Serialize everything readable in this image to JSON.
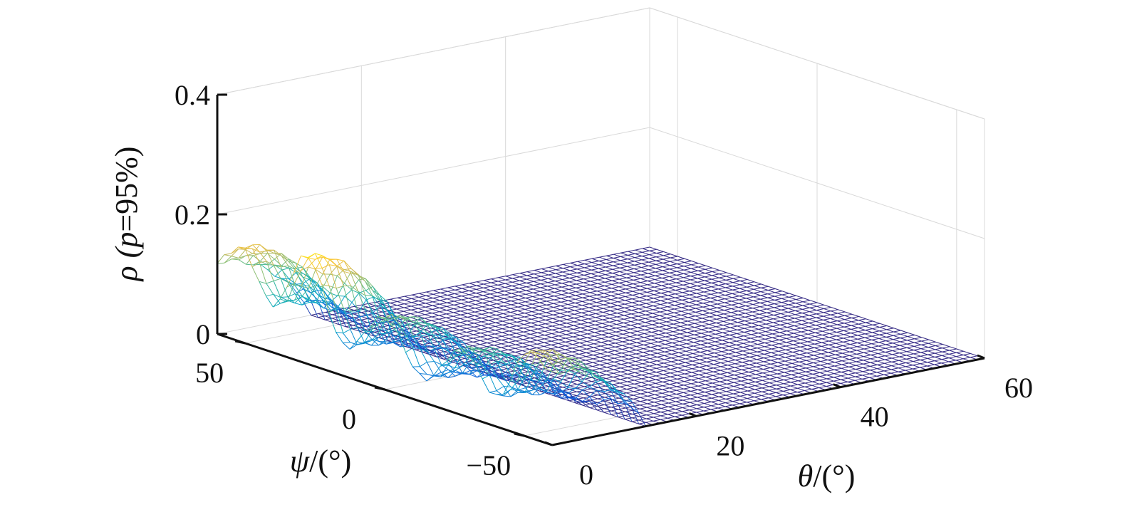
{
  "chart_data": {
    "type": "surface",
    "xlabel_parts": [
      "θ",
      "/(°)"
    ],
    "ylabel_parts": [
      "ψ",
      "/(°)"
    ],
    "zlabel_parts": [
      "ρ (",
      "p",
      "=95%)"
    ],
    "title": "",
    "xlim": [
      0,
      60
    ],
    "ylim": [
      -60,
      60
    ],
    "zlim": [
      0,
      0.4
    ],
    "x_ticks": [
      "0",
      "20",
      "40",
      "60"
    ],
    "x_tick_values": [
      0,
      20,
      40,
      60
    ],
    "y_ticks": [
      "50",
      "0",
      "−50"
    ],
    "y_tick_values": [
      50,
      0,
      -50
    ],
    "z_ticks": [
      "0",
      "0.2",
      "0.4"
    ],
    "z_tick_values": [
      0,
      0.2,
      0.4
    ],
    "grid": true,
    "colormap": [
      "#352a87",
      "#0f5cdd",
      "#1481d6",
      "#06a4ca",
      "#2eb7a4",
      "#87bf77",
      "#d1bb59",
      "#fec832",
      "#f9fb0e"
    ],
    "surface_description": {
      "theta_cutoff_deg": 13,
      "peak_psi_deg": [
        52,
        28,
        0,
        -28,
        -52
      ],
      "peak_rho": [
        0.16,
        0.18,
        0.12,
        0.11,
        0.145
      ],
      "trough_rho_psi_deg": [
        40,
        14,
        -14,
        -40
      ],
      "trough_rho": [
        0.08,
        0.05,
        0.04,
        0.05
      ],
      "plateau_rho": 0.0
    }
  }
}
